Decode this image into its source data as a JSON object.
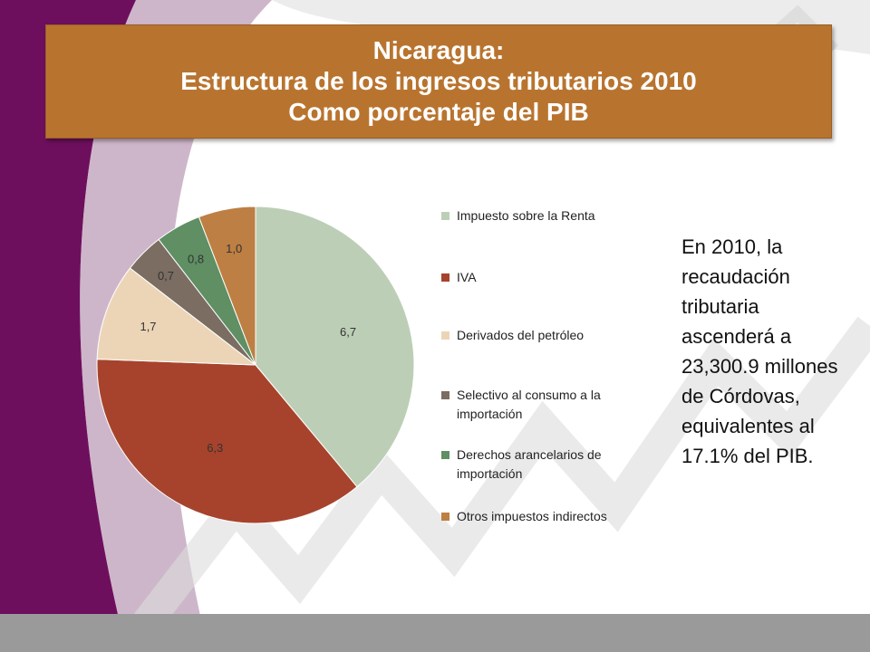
{
  "title": {
    "line1": "Nicaragua:",
    "line2": "Estructura de los ingresos tributarios 2010",
    "line3": "Como porcentaje del PIB"
  },
  "note": "En 2010, la recaudación tributaria ascenderá a 23,300.9 millones de Córdovas, equivalentes al 17.1% del PIB.",
  "colors": {
    "title_bg": "#b8742f",
    "background_purple": "#6e0f5e"
  },
  "chart_data": {
    "type": "pie",
    "title": "",
    "slices": [
      {
        "name": "Impuesto sobre la Renta",
        "value": 6.7,
        "label": "6,7",
        "color": "#bccfb6"
      },
      {
        "name": "IVA",
        "value": 6.3,
        "label": "6,3",
        "color": "#a7432c"
      },
      {
        "name": "Derivados del petróleo",
        "value": 1.7,
        "label": "1,7",
        "color": "#ecd5b7"
      },
      {
        "name": "Selectivo al consumo a la importación",
        "value": 0.7,
        "label": "0,7",
        "color": "#7b6d62"
      },
      {
        "name": "Derechos arancelarios de importación",
        "value": 0.8,
        "label": "0,8",
        "color": "#5f8f63"
      },
      {
        "name": "Otros impuestos indirectos",
        "value": 1.0,
        "label": "1,0",
        "color": "#bd7f43"
      }
    ],
    "legend_position": "right",
    "start_angle": "12 o'clock",
    "direction": "clockwise"
  }
}
